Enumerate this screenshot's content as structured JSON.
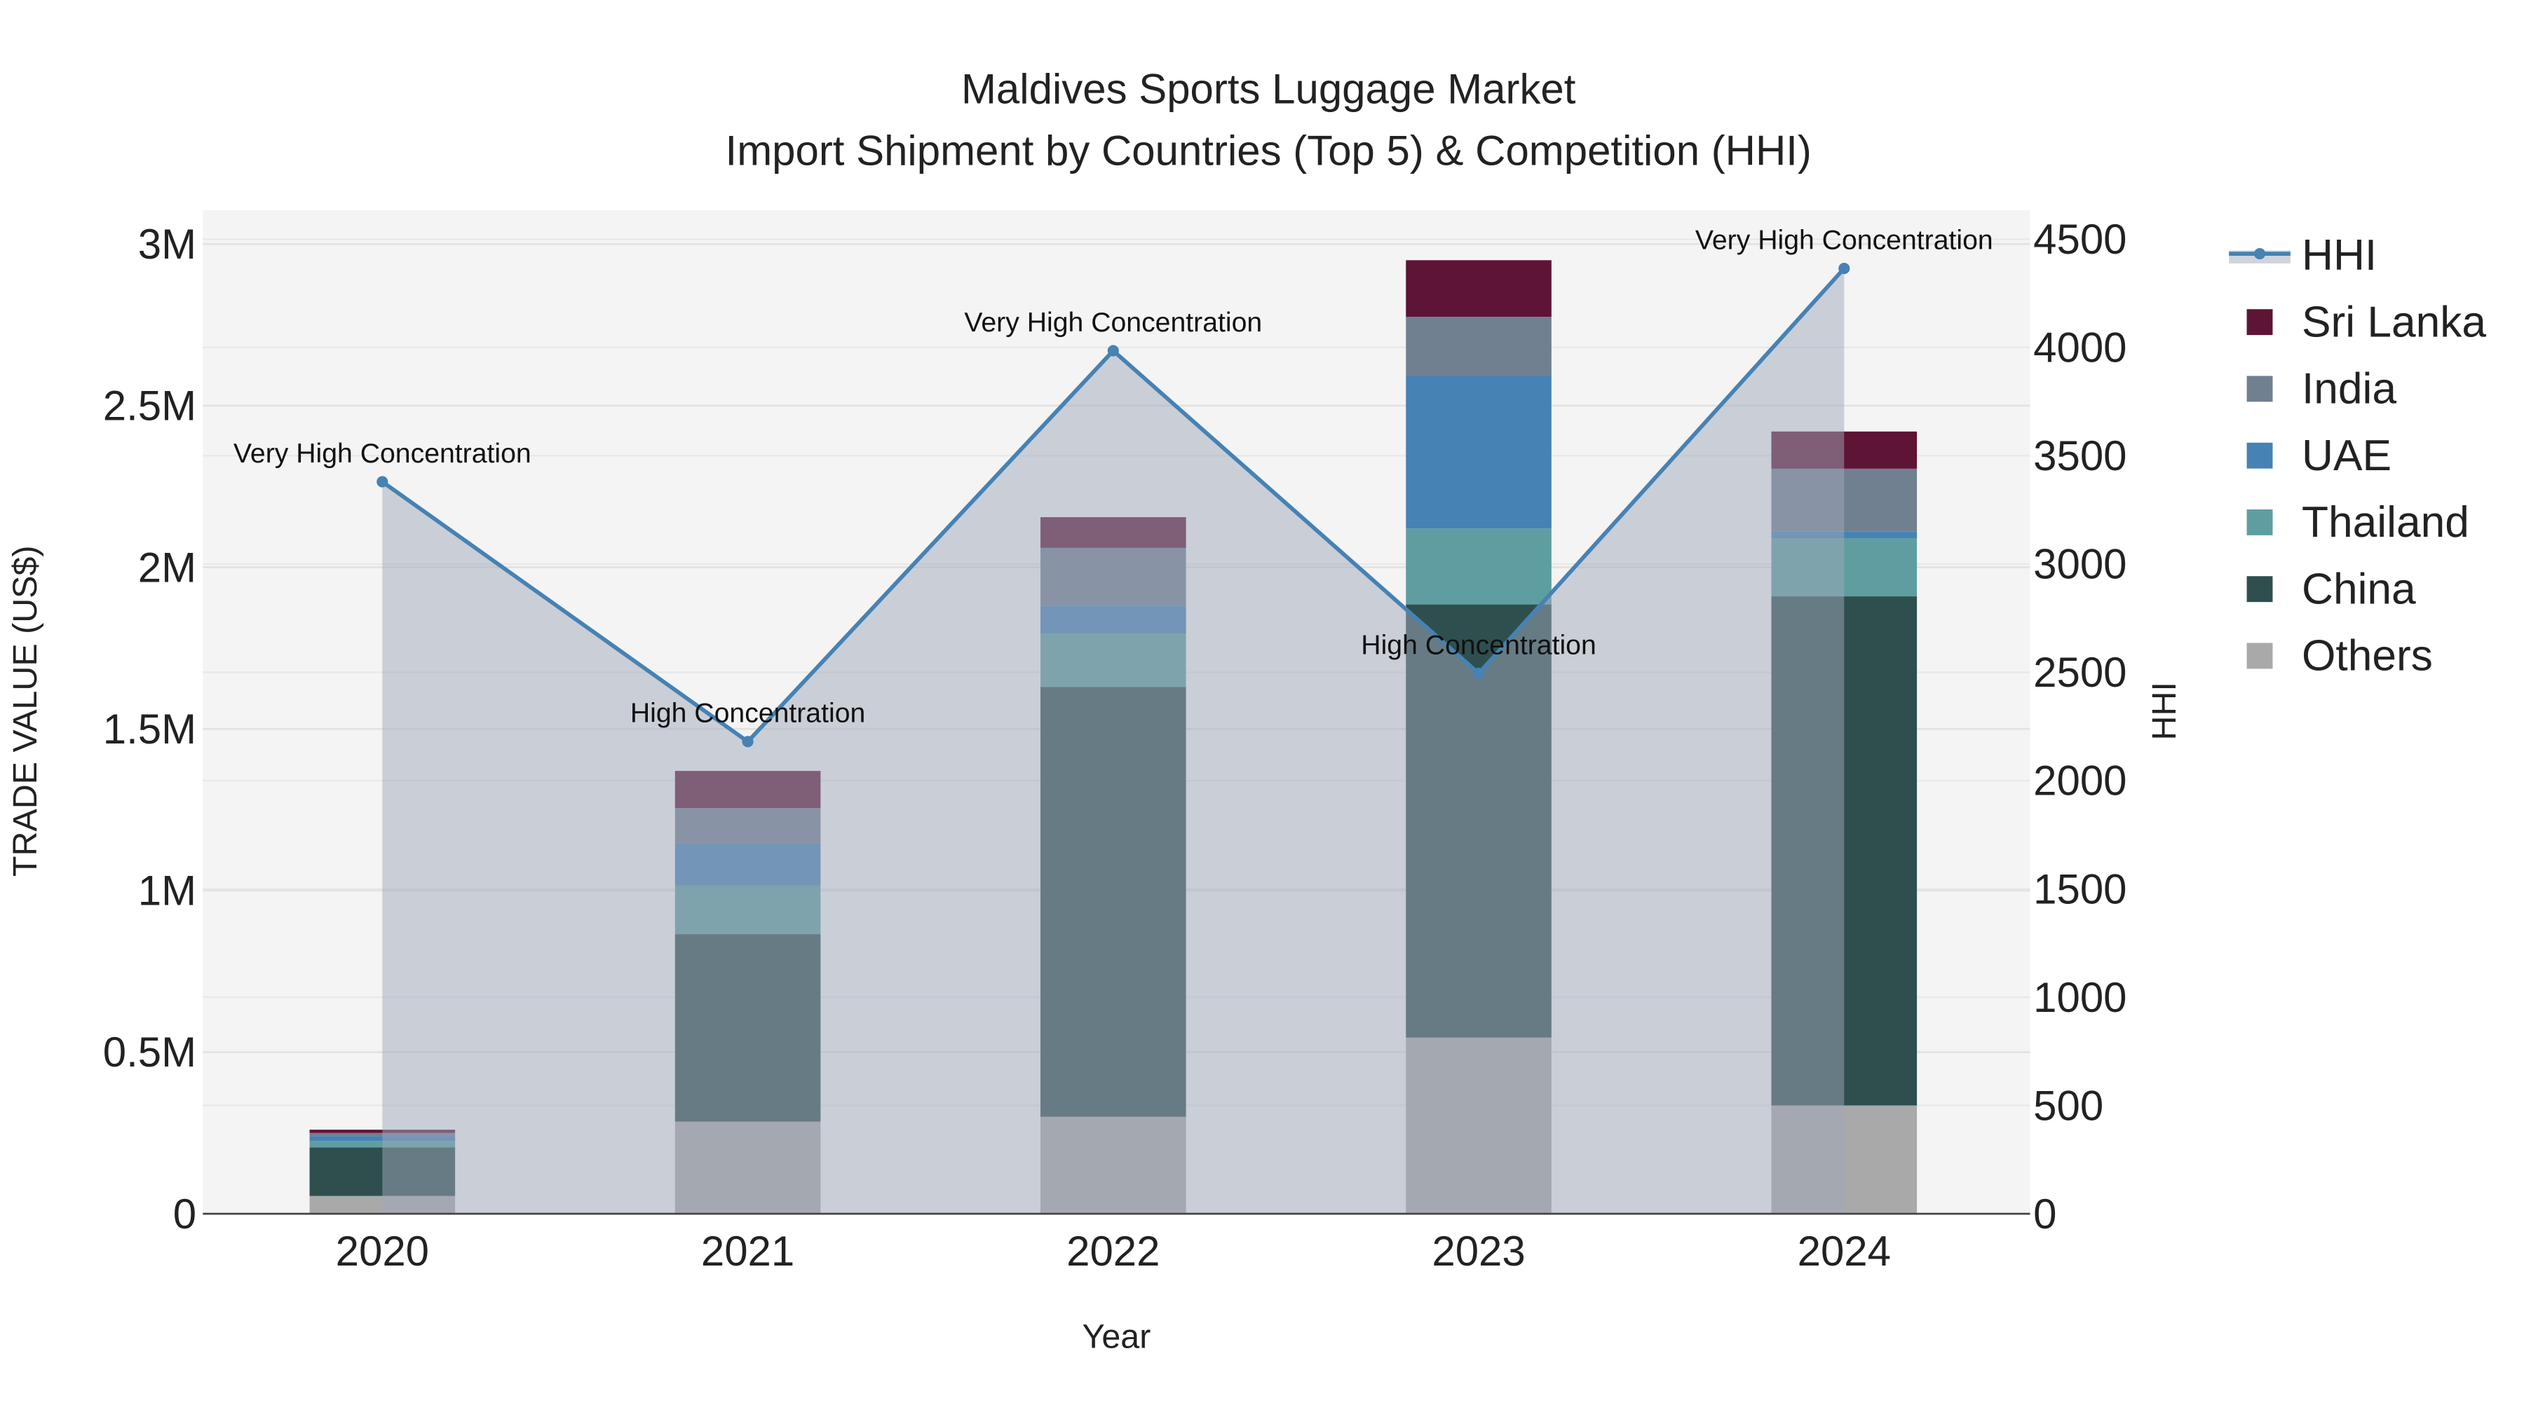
{
  "chart_data": {
    "type": "bar",
    "title_line1": "Maldives Sports Luggage Market",
    "title_line2": "Import Shipment by Countries (Top 5) & Competition (HHI)",
    "xlabel": "Year",
    "ylabel": "TRADE VALUE (US$)",
    "y2label": "HHI",
    "categories": [
      "2020",
      "2021",
      "2022",
      "2023",
      "2024"
    ],
    "ylim": [
      0,
      3100000
    ],
    "y2lim": [
      0,
      4650
    ],
    "yticks": [
      {
        "v": 0,
        "label": "0"
      },
      {
        "v": 500000,
        "label": "0.5M"
      },
      {
        "v": 1000000,
        "label": "1M"
      },
      {
        "v": 1500000,
        "label": "1.5M"
      },
      {
        "v": 2000000,
        "label": "2M"
      },
      {
        "v": 2500000,
        "label": "2.5M"
      },
      {
        "v": 3000000,
        "label": "3M"
      }
    ],
    "y2ticks": [
      0,
      500,
      1000,
      1500,
      2000,
      2500,
      3000,
      3500,
      4000,
      4500
    ],
    "series": [
      {
        "name": "Others",
        "color": "#a9a9a9",
        "values": [
          55000,
          285000,
          300000,
          545000,
          335000
        ]
      },
      {
        "name": "China",
        "color": "#2f4f4f",
        "values": [
          150000,
          580000,
          1330000,
          1340000,
          1575000
        ]
      },
      {
        "name": "Thailand",
        "color": "#5f9ea0",
        "values": [
          20000,
          150000,
          165000,
          235000,
          180000
        ]
      },
      {
        "name": "UAE",
        "color": "#4682b4",
        "values": [
          15000,
          130000,
          85000,
          475000,
          20000
        ]
      },
      {
        "name": "India",
        "color": "#708090",
        "values": [
          10000,
          110000,
          180000,
          180000,
          195000
        ]
      },
      {
        "name": "Sri Lanka",
        "color": "#5e1435",
        "values": [
          10000,
          115000,
          95000,
          175000,
          115000
        ]
      }
    ],
    "hhi": {
      "name": "HHI",
      "color": "#4682b4",
      "values": [
        3380,
        2180,
        3985,
        2495,
        4365
      ]
    },
    "annotations": [
      "Very High Concentration",
      "High Concentration",
      "Very High Concentration",
      "High Concentration",
      "Very High Concentration"
    ],
    "legend_order": [
      "HHI",
      "Sri Lanka",
      "India",
      "UAE",
      "Thailand",
      "China",
      "Others"
    ],
    "legend_placement": "right",
    "grid": true
  }
}
